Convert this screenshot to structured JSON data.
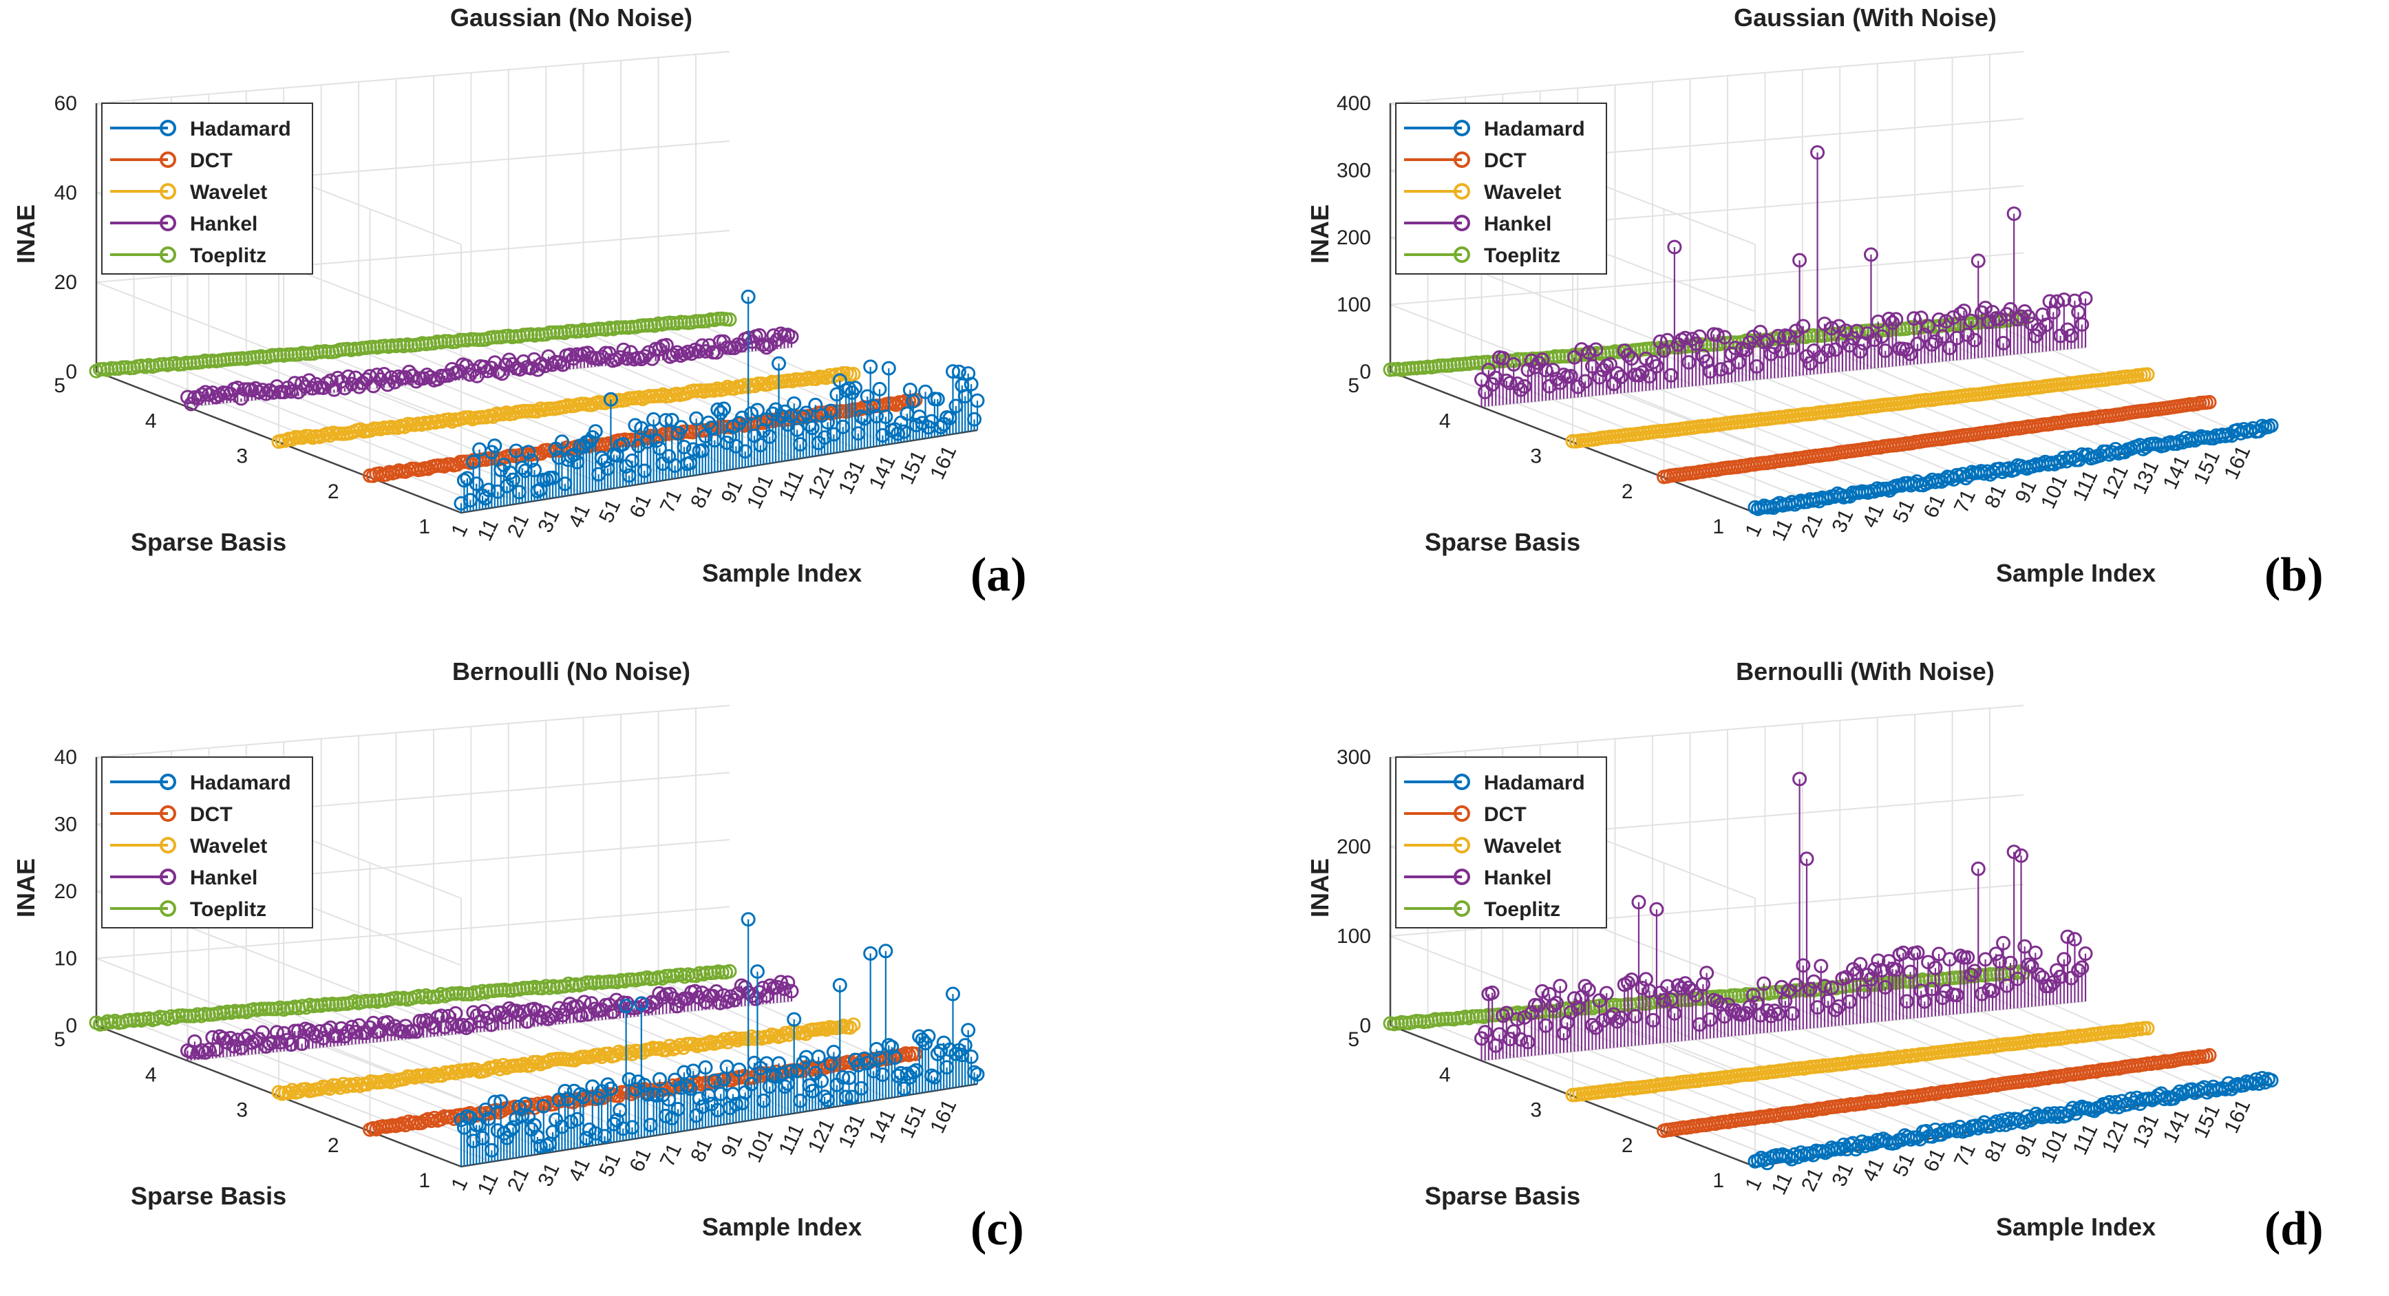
{
  "figure": {
    "legend_series": [
      "Hadamard",
      "DCT",
      "Wavelet",
      "Hankel",
      "Toeplitz"
    ],
    "series_colors": {
      "Hadamard": "#0072BD",
      "DCT": "#D95319",
      "Wavelet": "#EDB120",
      "Hankel": "#7E2F8E",
      "Toeplitz": "#77AC30"
    },
    "x_tick_labels": [
      "1",
      "11",
      "21",
      "31",
      "41",
      "51",
      "61",
      "71",
      "81",
      "91",
      "101",
      "111",
      "121",
      "131",
      "141",
      "151",
      "161"
    ],
    "y_tick_labels": [
      "1",
      "2",
      "3",
      "4",
      "5"
    ]
  },
  "chart_data": [
    {
      "type": "stem3",
      "panel_label": "(a)",
      "title": "Gaussian (No Noise)",
      "xlabel": "Sample Index",
      "ylabel": "Sparse Basis",
      "zlabel": "INAE",
      "z_ticks": [
        "0",
        "20",
        "40",
        "60"
      ],
      "zlim": [
        0,
        60
      ],
      "n_samples": 170,
      "series": [
        {
          "name": "Hadamard",
          "basis": 1,
          "base": 8,
          "noise": 6,
          "peaks": [
            [
              50,
              20
            ],
            [
              95,
              38
            ],
            [
              105,
              22
            ],
            [
              125,
              16
            ],
            [
              135,
              18
            ],
            [
              141,
              17
            ],
            [
              162,
              14
            ]
          ]
        },
        {
          "name": "DCT",
          "basis": 2,
          "base": 0.4,
          "noise": 0.3,
          "peaks": []
        },
        {
          "name": "Wavelet",
          "basis": 3,
          "base": 0.4,
          "noise": 0.3,
          "peaks": []
        },
        {
          "name": "Hankel",
          "basis": 4,
          "base": 2,
          "noise": 1.5,
          "peaks": []
        },
        {
          "name": "Toeplitz",
          "basis": 5,
          "base": 0.3,
          "noise": 0.2,
          "peaks": []
        }
      ]
    },
    {
      "type": "stem3",
      "panel_label": "(b)",
      "title": "Gaussian (With Noise)",
      "xlabel": "Sample Index",
      "ylabel": "Sparse Basis",
      "zlabel": "INAE",
      "z_ticks": [
        "0",
        "100",
        "200",
        "300",
        "400"
      ],
      "zlim": [
        0,
        400
      ],
      "n_samples": 170,
      "series": [
        {
          "name": "Hadamard",
          "basis": 1,
          "base": 5,
          "noise": 4,
          "peaks": []
        },
        {
          "name": "DCT",
          "basis": 2,
          "base": 1,
          "noise": 0.5,
          "peaks": []
        },
        {
          "name": "Wavelet",
          "basis": 3,
          "base": 1,
          "noise": 0.5,
          "peaks": []
        },
        {
          "name": "Hankel",
          "basis": 4,
          "base": 45,
          "noise": 30,
          "peaks": [
            [
              55,
              210
            ],
            [
              90,
              172
            ],
            [
              95,
              330
            ],
            [
              110,
              170
            ],
            [
              140,
              145
            ],
            [
              150,
              210
            ]
          ]
        },
        {
          "name": "Toeplitz",
          "basis": 5,
          "base": 2,
          "noise": 1,
          "peaks": []
        }
      ]
    },
    {
      "type": "stem3",
      "panel_label": "(c)",
      "title": "Bernoulli (No Noise)",
      "xlabel": "Sample Index",
      "ylabel": "Sparse Basis",
      "zlabel": "INAE",
      "z_ticks": [
        "0",
        "10",
        "20",
        "30",
        "40"
      ],
      "zlim": [
        0,
        40
      ],
      "n_samples": 170,
      "series": [
        {
          "name": "Hadamard",
          "basis": 1,
          "base": 5,
          "noise": 4,
          "peaks": [
            [
              55,
              20
            ],
            [
              60,
              20
            ],
            [
              95,
              30
            ],
            [
              98,
              22
            ],
            [
              110,
              14
            ],
            [
              125,
              18
            ],
            [
              135,
              22
            ],
            [
              140,
              22
            ],
            [
              162,
              14
            ]
          ]
        },
        {
          "name": "DCT",
          "basis": 2,
          "base": 0.4,
          "noise": 0.3,
          "peaks": []
        },
        {
          "name": "Wavelet",
          "basis": 3,
          "base": 0.4,
          "noise": 0.3,
          "peaks": []
        },
        {
          "name": "Hankel",
          "basis": 4,
          "base": 2,
          "noise": 1.2,
          "peaks": []
        },
        {
          "name": "Toeplitz",
          "basis": 5,
          "base": 0.3,
          "noise": 0.2,
          "peaks": []
        }
      ]
    },
    {
      "type": "stem3",
      "panel_label": "(d)",
      "title": "Bernoulli (With Noise)",
      "xlabel": "Sample Index",
      "ylabel": "Sparse Basis",
      "zlabel": "INAE",
      "z_ticks": [
        "0",
        "100",
        "200",
        "300"
      ],
      "zlim": [
        0,
        300
      ],
      "n_samples": 170,
      "series": [
        {
          "name": "Hadamard",
          "basis": 1,
          "base": 5,
          "noise": 4,
          "peaks": []
        },
        {
          "name": "DCT",
          "basis": 2,
          "base": 1,
          "noise": 0.5,
          "peaks": []
        },
        {
          "name": "Wavelet",
          "basis": 3,
          "base": 1,
          "noise": 0.5,
          "peaks": []
        },
        {
          "name": "Hankel",
          "basis": 4,
          "base": 45,
          "noise": 30,
          "peaks": [
            [
              45,
              160
            ],
            [
              50,
              150
            ],
            [
              90,
              280
            ],
            [
              92,
              190
            ],
            [
              140,
              160
            ],
            [
              150,
              175
            ],
            [
              152,
              170
            ]
          ]
        },
        {
          "name": "Toeplitz",
          "basis": 5,
          "base": 2,
          "noise": 1,
          "peaks": []
        }
      ]
    }
  ]
}
